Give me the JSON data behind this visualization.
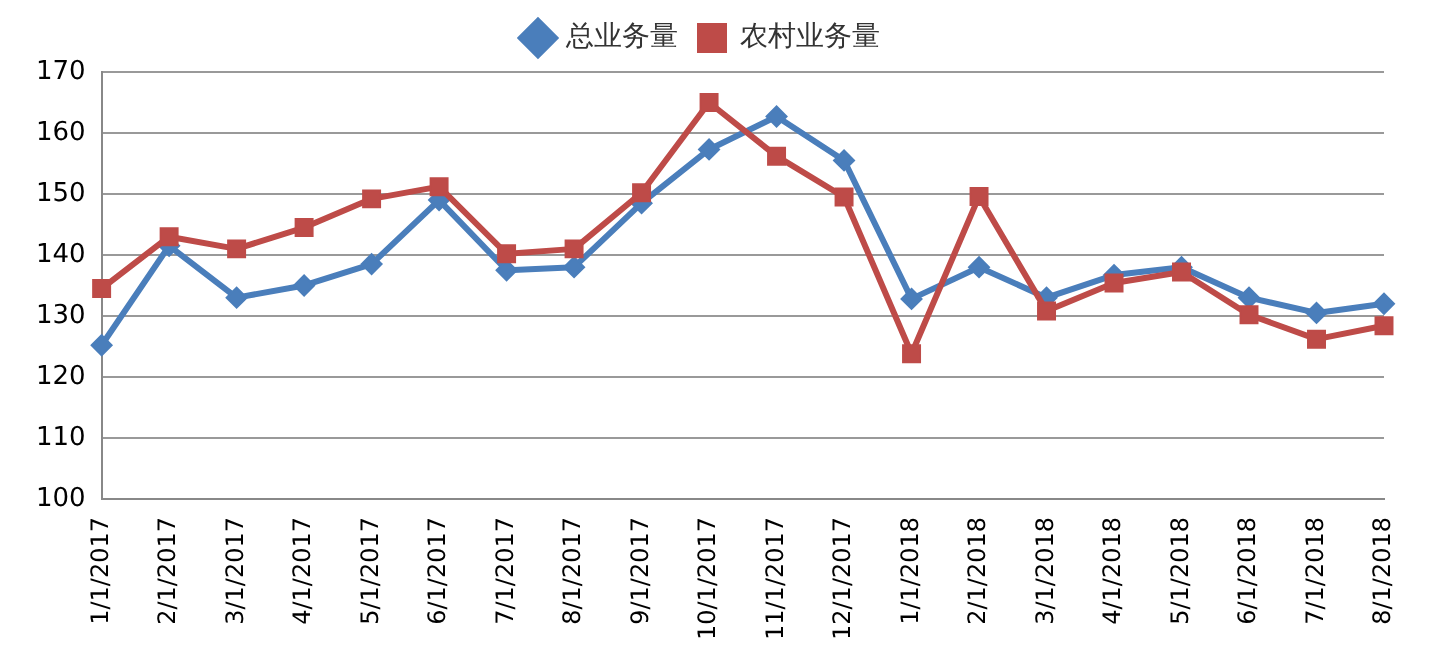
{
  "chart_data": {
    "type": "line",
    "categories": [
      "1/1/2017",
      "2/1/2017",
      "3/1/2017",
      "4/1/2017",
      "5/1/2017",
      "6/1/2017",
      "7/1/2017",
      "8/1/2017",
      "9/1/2017",
      "10/1/2017",
      "11/1/2017",
      "12/1/2017",
      "1/1/2018",
      "2/1/2018",
      "3/1/2018",
      "4/1/2018",
      "5/1/2018",
      "6/1/2018",
      "7/1/2018",
      "8/1/2018"
    ],
    "series": [
      {
        "name": "总业务量",
        "color": "#4a7ebb",
        "marker": "diamond",
        "values": [
          125.2,
          141.5,
          133,
          135,
          138.5,
          149,
          137.5,
          138,
          148.5,
          157.3,
          162.7,
          155.5,
          132.8,
          138,
          133,
          136.7,
          138,
          133,
          130.5,
          132
        ]
      },
      {
        "name": "农村业务量",
        "color": "#be4b48",
        "marker": "square",
        "values": [
          134.5,
          143,
          141,
          144.5,
          149.2,
          151.2,
          140.2,
          141,
          150.2,
          165,
          156.2,
          149.5,
          123.8,
          149.6,
          130.8,
          135.4,
          137.2,
          130.2,
          126.2,
          128.4
        ]
      }
    ],
    "ylim": [
      100,
      170
    ],
    "yticks": [
      100,
      110,
      120,
      130,
      140,
      150,
      160,
      170
    ],
    "grid": "y",
    "legend": "top"
  }
}
